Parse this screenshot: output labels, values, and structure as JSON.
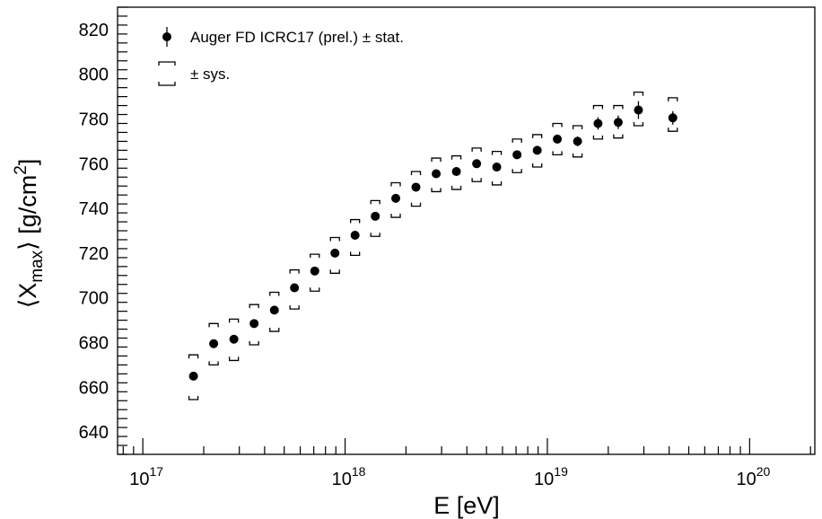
{
  "chart_data": {
    "type": "scatter",
    "x_scale": "log",
    "xlim": [
      7.5e+16,
      2.1e+20
    ],
    "ylim": [
      630,
      830
    ],
    "x_ticks": [
      {
        "value": 1e+17,
        "base": "10",
        "exp": "17"
      },
      {
        "value": 1e+18,
        "base": "10",
        "exp": "18"
      },
      {
        "value": 1e+19,
        "base": "10",
        "exp": "19"
      },
      {
        "value": 1e+20,
        "base": "10",
        "exp": "20"
      }
    ],
    "y_ticks": [
      640,
      660,
      680,
      700,
      720,
      740,
      760,
      780,
      800,
      820
    ],
    "xlabel": "E [eV]",
    "ylabel": {
      "open": "⟨X",
      "sub": "max",
      "mid": "⟩ [g/cm",
      "sup": "2",
      "close": "]"
    },
    "grid": false,
    "legend": {
      "position": "top-left",
      "entries": [
        {
          "label": "Auger FD ICRC17 (prel.) ± stat.",
          "marker": "point-with-error-bar"
        },
        {
          "label": "± sys.",
          "marker": "bracket"
        }
      ]
    },
    "series": [
      {
        "name": "Auger FD ICRC17 (prel.)",
        "color": "#000000",
        "points": [
          {
            "x": 1.78e+17,
            "y": 665.0,
            "stat": 1.0,
            "sys_lo": 10.5,
            "sys_hi": 9.5
          },
          {
            "x": 2.24e+17,
            "y": 679.5,
            "stat": 1.0,
            "sys_lo": 9.5,
            "sys_hi": 9.0
          },
          {
            "x": 2.82e+17,
            "y": 681.5,
            "stat": 1.0,
            "sys_lo": 9.5,
            "sys_hi": 9.0
          },
          {
            "x": 3.55e+17,
            "y": 688.5,
            "stat": 1.0,
            "sys_lo": 9.5,
            "sys_hi": 8.5
          },
          {
            "x": 4.47e+17,
            "y": 694.5,
            "stat": 1.0,
            "sys_lo": 9.5,
            "sys_hi": 8.0
          },
          {
            "x": 5.62e+17,
            "y": 704.5,
            "stat": 1.0,
            "sys_lo": 9.5,
            "sys_hi": 8.0
          },
          {
            "x": 7.08e+17,
            "y": 712.0,
            "stat": 1.0,
            "sys_lo": 9.0,
            "sys_hi": 7.5
          },
          {
            "x": 8.91e+17,
            "y": 720.0,
            "stat": 1.0,
            "sys_lo": 9.0,
            "sys_hi": 7.0
          },
          {
            "x": 1.12e+18,
            "y": 728.0,
            "stat": 1.2,
            "sys_lo": 9.0,
            "sys_hi": 7.0
          },
          {
            "x": 1.41e+18,
            "y": 736.5,
            "stat": 1.2,
            "sys_lo": 9.0,
            "sys_hi": 7.0
          },
          {
            "x": 1.78e+18,
            "y": 744.5,
            "stat": 1.2,
            "sys_lo": 8.5,
            "sys_hi": 7.0
          },
          {
            "x": 2.24e+18,
            "y": 749.5,
            "stat": 1.2,
            "sys_lo": 8.5,
            "sys_hi": 7.0
          },
          {
            "x": 2.82e+18,
            "y": 755.5,
            "stat": 1.3,
            "sys_lo": 8.0,
            "sys_hi": 7.0
          },
          {
            "x": 3.55e+18,
            "y": 756.5,
            "stat": 1.3,
            "sys_lo": 8.0,
            "sys_hi": 7.0
          },
          {
            "x": 4.47e+18,
            "y": 760.0,
            "stat": 1.5,
            "sys_lo": 8.0,
            "sys_hi": 7.0
          },
          {
            "x": 5.62e+18,
            "y": 758.5,
            "stat": 1.5,
            "sys_lo": 8.0,
            "sys_hi": 7.0
          },
          {
            "x": 7.08e+18,
            "y": 764.0,
            "stat": 1.6,
            "sys_lo": 8.0,
            "sys_hi": 7.0
          },
          {
            "x": 8.91e+18,
            "y": 766.0,
            "stat": 1.8,
            "sys_lo": 7.5,
            "sys_hi": 7.0
          },
          {
            "x": 1.12e+19,
            "y": 771.0,
            "stat": 2.0,
            "sys_lo": 7.0,
            "sys_hi": 7.0
          },
          {
            "x": 1.41e+19,
            "y": 770.0,
            "stat": 2.2,
            "sys_lo": 7.0,
            "sys_hi": 7.0
          },
          {
            "x": 1.78e+19,
            "y": 778.0,
            "stat": 2.8,
            "sys_lo": 7.0,
            "sys_hi": 8.0
          },
          {
            "x": 2.24e+19,
            "y": 778.5,
            "stat": 3.0,
            "sys_lo": 7.0,
            "sys_hi": 7.5
          },
          {
            "x": 2.82e+19,
            "y": 784.0,
            "stat": 4.0,
            "sys_lo": 7.0,
            "sys_hi": 8.0
          },
          {
            "x": 4.17e+19,
            "y": 780.5,
            "stat": 3.0,
            "sys_lo": 6.0,
            "sys_hi": 9.0
          }
        ]
      }
    ]
  }
}
